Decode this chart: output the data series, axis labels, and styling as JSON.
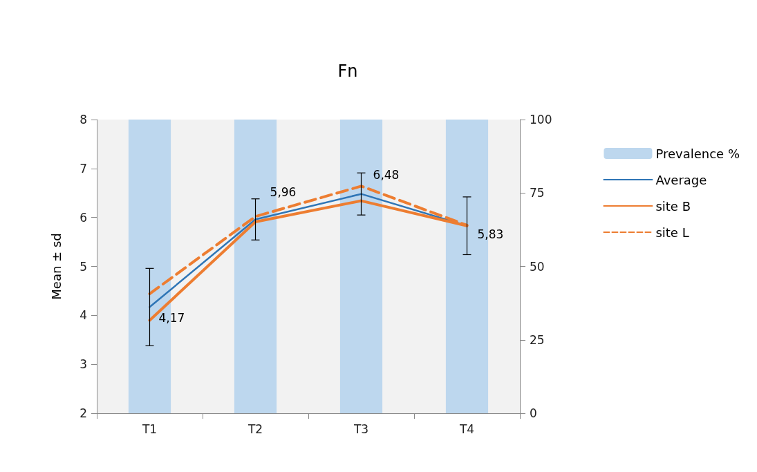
{
  "chart_data": {
    "type": "line",
    "title": "Fn",
    "ylabel": "Mean ± sd",
    "categories": [
      "T1",
      "T2",
      "T3",
      "T4"
    ],
    "series": [
      {
        "name": "Prevalence %",
        "type": "bar",
        "axis": "y2",
        "color": "#bdd7ee",
        "values": [
          100,
          100,
          100,
          100
        ]
      },
      {
        "name": "Average",
        "color": "#2e75b6",
        "values": [
          4.17,
          5.96,
          6.48,
          5.83
        ],
        "errors": [
          0.79,
          0.42,
          0.43,
          0.59
        ],
        "value_labels": [
          "4,17",
          "5,96",
          "6,48",
          "5,83"
        ]
      },
      {
        "name": "site B",
        "color": "#ed7d31",
        "values": [
          3.9,
          5.91,
          6.34,
          5.83
        ]
      },
      {
        "name": "site L",
        "color": "#ed7d31",
        "values": [
          4.44,
          6.02,
          6.64,
          5.84
        ],
        "line_style": "dashed"
      }
    ],
    "ylim": [
      2,
      8
    ],
    "yticks": [
      2,
      3,
      4,
      5,
      6,
      7,
      8
    ],
    "y2lim": [
      0,
      100
    ],
    "y2ticks": [
      0,
      25,
      50,
      75,
      100
    ],
    "grid": false,
    "legend": "right",
    "marker": "none"
  }
}
